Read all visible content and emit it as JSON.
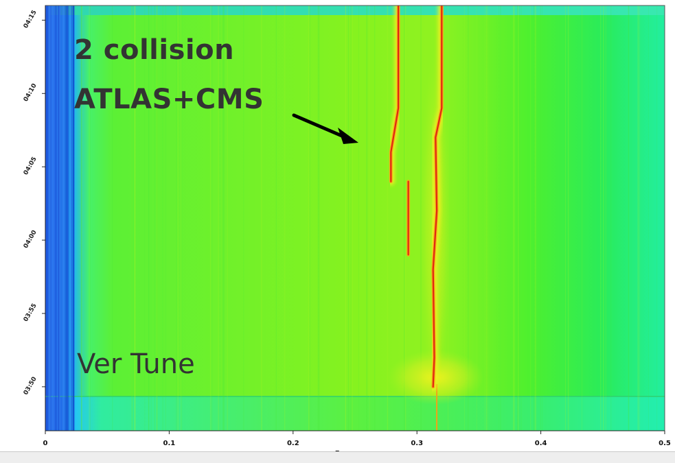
{
  "chart_data": {
    "type": "heatmap",
    "title": "",
    "xlabel": "Frequency",
    "ylabel": "",
    "xlim": [
      0,
      0.5
    ],
    "ylim": [
      "03:47",
      "04:16"
    ],
    "x_ticks": [
      "0",
      "0.1",
      "0.2",
      "0.3",
      "0.4",
      "0.5"
    ],
    "y_ticks": [
      "03:50",
      "03:55",
      "04:00",
      "04:05",
      "04:10",
      "04:15"
    ],
    "colormap": [
      "#1e5ae6",
      "#1fb4f0",
      "#25e8a8",
      "#66f23c",
      "#b8f01e",
      "#f2f020",
      "#f5a018",
      "#e03010"
    ],
    "annotations": [
      {
        "text": "2 collision",
        "style": "bold"
      },
      {
        "text": "ATLAS+CMS",
        "style": "bold"
      },
      {
        "text": "Ver Tune",
        "style": "normal"
      }
    ],
    "tune_lines": [
      {
        "points": [
          [
            0.285,
            "04:16"
          ],
          [
            0.285,
            "04:09"
          ],
          [
            0.279,
            "04:06"
          ],
          [
            0.279,
            "04:04"
          ]
        ]
      },
      {
        "points": [
          [
            0.293,
            "04:04"
          ],
          [
            0.293,
            "03:59"
          ]
        ]
      },
      {
        "points": [
          [
            0.32,
            "04:16"
          ],
          [
            0.32,
            "04:09"
          ],
          [
            0.315,
            "04:07"
          ],
          [
            0.316,
            "04:02"
          ],
          [
            0.313,
            "03:58"
          ],
          [
            0.314,
            "03:52"
          ],
          [
            0.313,
            "03:50"
          ]
        ]
      }
    ],
    "baseline_line_x": 0.316
  }
}
